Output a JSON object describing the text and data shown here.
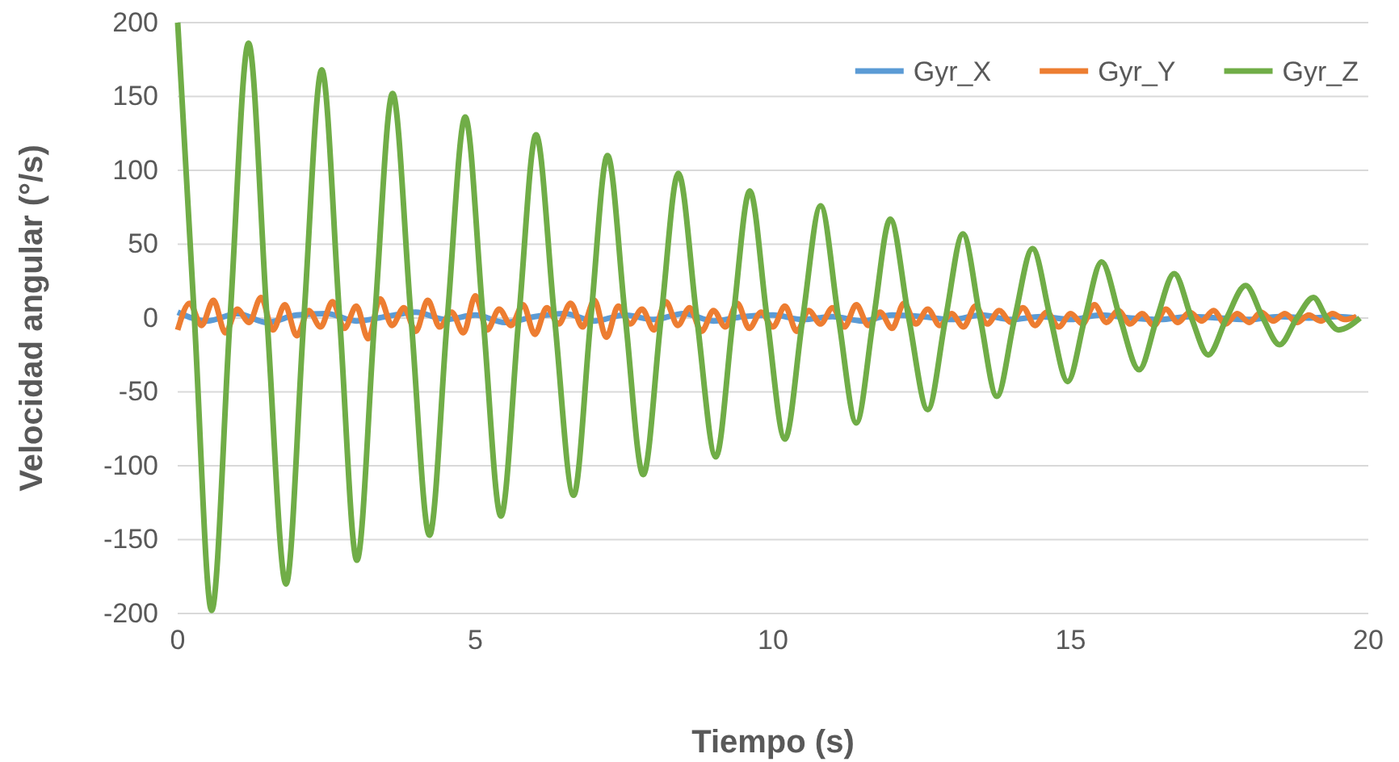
{
  "chart_data": {
    "type": "line",
    "xlabel": "Tiempo (s)",
    "ylabel": "Velocidad angular (°/s)",
    "xlim": [
      0,
      20
    ],
    "ylim": [
      -200,
      200
    ],
    "xticks": [
      0,
      5,
      10,
      15,
      20
    ],
    "yticks": [
      -200,
      -150,
      -100,
      -50,
      0,
      50,
      100,
      150,
      200
    ],
    "grid": "y",
    "legend": "top right",
    "series": [
      {
        "name": "Gyr_X",
        "color": "#5b9bd5",
        "x": [
          0,
          0.5,
          1,
          1.5,
          2,
          2.5,
          3,
          3.5,
          4,
          4.5,
          5,
          5.5,
          6,
          6.5,
          7,
          7.5,
          8,
          8.5,
          9,
          9.5,
          10,
          10.5,
          11,
          11.5,
          12,
          12.5,
          13,
          13.5,
          14,
          14.5,
          15,
          15.5,
          16,
          16.5,
          17,
          17.5,
          18,
          18.5,
          19,
          19.5,
          19.8
        ],
        "values": [
          4,
          -2,
          3,
          -3,
          2,
          3,
          -2,
          1,
          4,
          -1,
          2,
          -3,
          1,
          3,
          -2,
          2,
          -1,
          3,
          -2,
          1,
          2,
          -1,
          1,
          -2,
          2,
          1,
          -1,
          2,
          -1,
          1,
          -1,
          2,
          0,
          -1,
          1,
          0,
          -1,
          1,
          0,
          1,
          0
        ]
      },
      {
        "name": "Gyr_Y",
        "color": "#ed7d31",
        "x": [
          0,
          0.2,
          0.4,
          0.6,
          0.8,
          1,
          1.2,
          1.4,
          1.6,
          1.8,
          2,
          2.2,
          2.4,
          2.6,
          2.8,
          3,
          3.2,
          3.4,
          3.6,
          3.8,
          4,
          4.2,
          4.4,
          4.6,
          4.8,
          5,
          5.2,
          5.4,
          5.6,
          5.8,
          6,
          6.2,
          6.4,
          6.6,
          6.8,
          7,
          7.2,
          7.4,
          7.6,
          7.8,
          8,
          8.2,
          8.4,
          8.6,
          8.8,
          9,
          9.2,
          9.4,
          9.6,
          9.8,
          10,
          10.2,
          10.4,
          10.6,
          10.8,
          11,
          11.2,
          11.4,
          11.6,
          11.8,
          12,
          12.2,
          12.4,
          12.6,
          12.8,
          13,
          13.2,
          13.4,
          13.6,
          13.8,
          14,
          14.2,
          14.4,
          14.6,
          14.8,
          15,
          15.2,
          15.4,
          15.6,
          15.8,
          16,
          16.2,
          16.4,
          16.6,
          16.8,
          17,
          17.2,
          17.4,
          17.6,
          17.8,
          18,
          18.2,
          18.4,
          18.6,
          18.8,
          19,
          19.2,
          19.4,
          19.6,
          19.8
        ],
        "values": [
          -8,
          10,
          -5,
          12,
          -10,
          6,
          -3,
          14,
          -8,
          9,
          -12,
          5,
          -6,
          11,
          -7,
          8,
          -14,
          13,
          -5,
          7,
          -9,
          12,
          -6,
          4,
          -10,
          15,
          -8,
          6,
          -5,
          9,
          -11,
          7,
          -4,
          10,
          -6,
          12,
          -13,
          8,
          -4,
          6,
          -8,
          11,
          -5,
          7,
          -9,
          5,
          -6,
          10,
          -7,
          4,
          -6,
          8,
          -9,
          5,
          -4,
          7,
          -6,
          9,
          -5,
          4,
          -7,
          10,
          -4,
          6,
          -5,
          3,
          -6,
          8,
          -4,
          5,
          -3,
          7,
          -5,
          4,
          -6,
          3,
          -4,
          9,
          -3,
          5,
          -4,
          3,
          -5,
          6,
          -3,
          4,
          -2,
          5,
          -4,
          3,
          -3,
          4,
          -2,
          3,
          -3,
          2,
          -2,
          3,
          -1,
          1
        ]
      },
      {
        "name": "Gyr_Z",
        "color": "#70ad47",
        "x": [
          0,
          0.28,
          0.57,
          0.88,
          1.19,
          1.5,
          1.82,
          2.12,
          2.42,
          2.72,
          3.01,
          3.31,
          3.61,
          3.92,
          4.23,
          4.53,
          4.83,
          5.13,
          5.43,
          5.73,
          6.02,
          6.33,
          6.65,
          6.94,
          7.22,
          7.52,
          7.82,
          8.12,
          8.41,
          8.72,
          9.04,
          9.33,
          9.61,
          9.9,
          10.2,
          10.5,
          10.8,
          11.1,
          11.4,
          11.69,
          11.97,
          12.28,
          12.6,
          12.9,
          13.19,
          13.48,
          13.76,
          14.06,
          14.36,
          14.66,
          14.95,
          15.24,
          15.52,
          15.83,
          16.15,
          16.45,
          16.74,
          17.03,
          17.31,
          17.62,
          17.94,
          18.23,
          18.51,
          18.8,
          19.08,
          19.3,
          19.5,
          19.86
        ],
        "values": [
          200,
          0,
          -198,
          0,
          186,
          0,
          -180,
          0,
          168,
          0,
          -164,
          0,
          152,
          0,
          -147,
          0,
          136,
          0,
          -134,
          0,
          124,
          0,
          -120,
          0,
          110,
          0,
          -106,
          0,
          98,
          0,
          -94,
          0,
          86,
          0,
          -82,
          0,
          76,
          0,
          -71,
          0,
          67,
          0,
          -62,
          0,
          57,
          0,
          -53,
          0,
          47,
          0,
          -43,
          0,
          38,
          0,
          -35,
          0,
          30,
          0,
          -25,
          0,
          22,
          0,
          -18,
          0,
          14,
          0,
          -8,
          0
        ]
      }
    ]
  }
}
